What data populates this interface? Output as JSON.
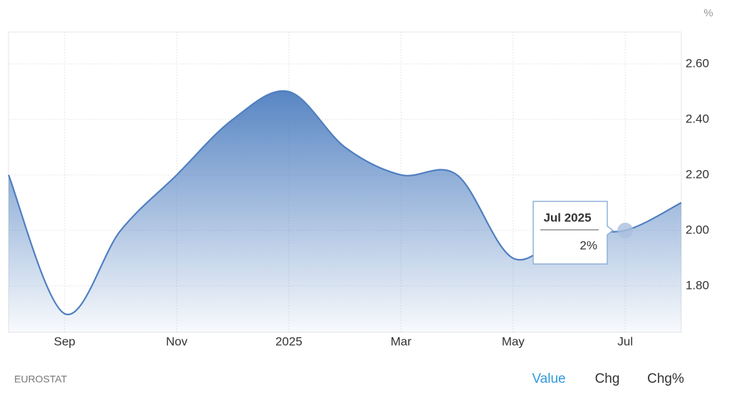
{
  "chart_data": {
    "type": "area",
    "unit": "%",
    "categories": [
      null,
      "Sep",
      null,
      "Nov",
      null,
      "2025",
      null,
      "Mar",
      null,
      "May",
      null,
      "Jul",
      null
    ],
    "values": [
      2.2,
      1.7,
      2.0,
      2.2,
      2.4,
      2.5,
      2.3,
      2.2,
      2.2,
      1.9,
      2.0,
      2.0,
      2.1
    ],
    "color": "#4f7fc0",
    "ylim": [
      1.633,
      2.715
    ],
    "yticks": [
      {
        "value": 1.8,
        "label": "1.80"
      },
      {
        "value": 2.0,
        "label": "2.00"
      },
      {
        "value": 2.2,
        "label": "2.20"
      },
      {
        "value": 2.4,
        "label": "2.40"
      },
      {
        "value": 2.6,
        "label": "2.60"
      }
    ],
    "grid": true,
    "tooltip": {
      "index": 11,
      "title": "Jul 2025",
      "value": 2,
      "label": "2%"
    },
    "source": "EUROSTAT",
    "buttons": [
      "Value",
      "Chg",
      "Chg%"
    ],
    "active_button": 0
  }
}
